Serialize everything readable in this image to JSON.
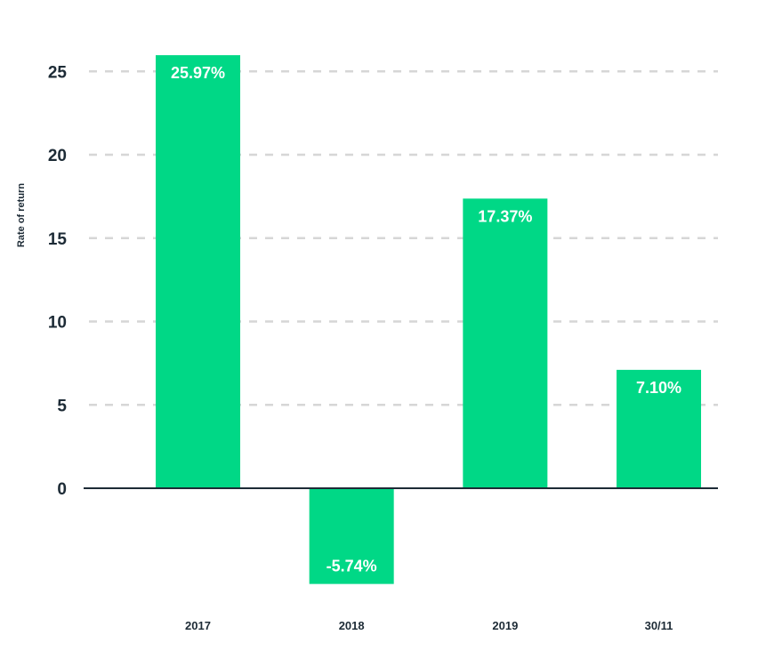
{
  "chart_data": {
    "type": "bar",
    "title": "",
    "xlabel": "",
    "ylabel": "Rate of return",
    "categories": [
      "2017",
      "2018",
      "2019",
      "30/11"
    ],
    "values": [
      25.97,
      -5.74,
      17.37,
      7.1
    ],
    "data_labels": [
      "25.97%",
      "-5.74%",
      "17.37%",
      "7.10%"
    ],
    "yticks": [
      0,
      5,
      10,
      15,
      20,
      25
    ],
    "ylim": [
      -6,
      27
    ],
    "grid": true,
    "bar_color": "#00d886",
    "axis_color": "#1d2b36",
    "grid_color": "#d6d6d6",
    "label_color": "#ffffff"
  }
}
